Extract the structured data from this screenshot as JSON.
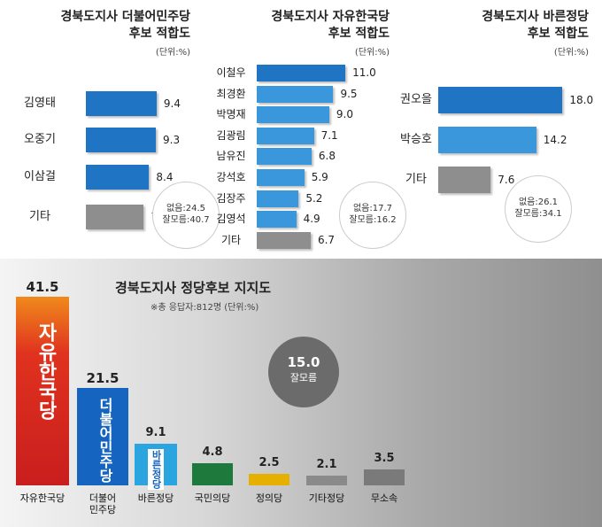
{
  "chart_data": [
    {
      "type": "hbar",
      "title": "경북도지사 더불어민주당\n후보 적합도",
      "unit": "(단위:%)",
      "categories": [
        "김영태",
        "오중기",
        "이삼걸",
        "기타"
      ],
      "values": [
        9.4,
        9.3,
        8.4,
        7.7
      ],
      "colors": [
        "#1f74c4",
        "#1f74c4",
        "#1f74c4",
        "#8e8e8e"
      ],
      "notes": [
        "없음:24.5",
        "잘모름:40.7"
      ]
    },
    {
      "type": "hbar",
      "title": "경북도지사 자유한국당\n후보 적합도",
      "unit": "(단위:%)",
      "categories": [
        "이철우",
        "최경환",
        "박명재",
        "김광림",
        "남유진",
        "강석호",
        "김장주",
        "김영석",
        "기타"
      ],
      "values": [
        11.0,
        9.5,
        9.0,
        7.1,
        6.8,
        5.9,
        5.2,
        4.9,
        6.7
      ],
      "value_labels": [
        "11.0",
        "9.5",
        "9.0",
        "7.1",
        "6.8",
        "5.9",
        "5.2",
        "4.9",
        "6.7"
      ],
      "colors": [
        "#1f74c4",
        "#3b97dc",
        "#3b97dc",
        "#3b97dc",
        "#3b97dc",
        "#3b97dc",
        "#3b97dc",
        "#3b97dc",
        "#8e8e8e"
      ],
      "notes": [
        "없음:17.7",
        "잘모름:16.2"
      ]
    },
    {
      "type": "hbar",
      "title": "경북도지사 바른정당\n후보 적합도",
      "unit": "(단위:%)",
      "categories": [
        "권오을",
        "박승호",
        "기타"
      ],
      "values": [
        18.0,
        14.2,
        7.6
      ],
      "value_labels": [
        "18.0",
        "14.2",
        "7.6"
      ],
      "colors": [
        "#1f74c4",
        "#3b97dc",
        "#8e8e8e"
      ],
      "notes": [
        "없음:26.1",
        "잘모름:34.1"
      ]
    },
    {
      "type": "vbar",
      "title": "경북도지사 정당후보 지지도",
      "subtitle": "※총 응답자:812명 (단위:%)",
      "categories": [
        "자유한국당",
        "더불어\n민주당",
        "바른정당",
        "국민의당",
        "정의당",
        "기타정당",
        "무소속"
      ],
      "values": [
        41.5,
        21.5,
        9.1,
        4.8,
        2.5,
        2.1,
        3.5
      ],
      "colors": [
        "#d8261d",
        "#1565c0",
        "#2aa5e0",
        "#1e7a3c",
        "#e5b000",
        "#8a8a8a",
        "#7a7a7a"
      ],
      "logos": [
        "자유한국당",
        "더불어민주당",
        "바른정당"
      ],
      "unknown": {
        "value": 15.0,
        "label": "15.0",
        "name": "잘모름"
      }
    }
  ]
}
